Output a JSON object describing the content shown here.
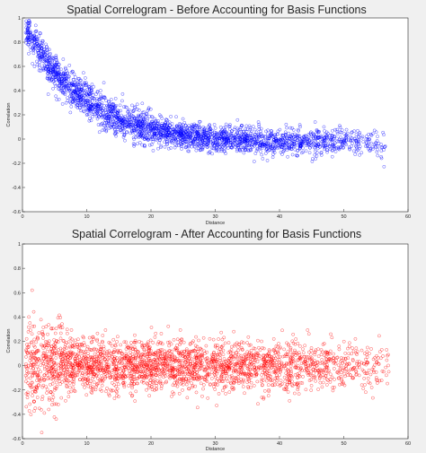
{
  "chart_data": [
    {
      "type": "scatter",
      "title": "Spatial Correlogram - Before Accounting for Basis Functions",
      "xlabel": "Distance",
      "ylabel": "Correlation",
      "xlim": [
        0,
        60
      ],
      "ylim": [
        -0.6,
        1
      ],
      "xticks": [
        "0",
        "10",
        "20",
        "30",
        "40",
        "50",
        "60"
      ],
      "yticks": [
        "-0.6",
        "-0.4",
        "-0.2",
        "0",
        "0.2",
        "0.4",
        "0.6",
        "0.8",
        "1"
      ],
      "marker": "open-circle",
      "color": "#0000ff",
      "grid": false,
      "trend": "exponential decay from about 0.85 at distance 0 toward about -0.02 beyond distance 40",
      "samples": [
        {
          "x": 1,
          "y": 0.86
        },
        {
          "x": 2,
          "y": 0.78
        },
        {
          "x": 3,
          "y": 0.7
        },
        {
          "x": 5,
          "y": 0.56
        },
        {
          "x": 7,
          "y": 0.44
        },
        {
          "x": 10,
          "y": 0.32
        },
        {
          "x": 13,
          "y": 0.22
        },
        {
          "x": 16,
          "y": 0.14
        },
        {
          "x": 20,
          "y": 0.08
        },
        {
          "x": 25,
          "y": 0.03
        },
        {
          "x": 30,
          "y": 0.0
        },
        {
          "x": 35,
          "y": -0.01
        },
        {
          "x": 40,
          "y": -0.02
        },
        {
          "x": 45,
          "y": -0.02
        },
        {
          "x": 50,
          "y": -0.01
        },
        {
          "x": 55,
          "y": -0.03
        },
        {
          "x": 56,
          "y": -0.07
        }
      ],
      "point_count": 2600,
      "x_extent": [
        0.5,
        56.5
      ],
      "scatter_halfwidth": 0.09
    },
    {
      "type": "scatter",
      "title": "Spatial Correlogram - After Accounting for Basis Functions",
      "xlabel": "Distance",
      "ylabel": "Correlation",
      "xlim": [
        0,
        60
      ],
      "ylim": [
        -0.6,
        1
      ],
      "xticks": [
        "0",
        "10",
        "20",
        "30",
        "40",
        "50",
        "60"
      ],
      "yticks": [
        "-0.6",
        "-0.4",
        "-0.2",
        "0",
        "0.2",
        "0.4",
        "0.6",
        "0.8",
        "1"
      ],
      "marker": "open-circle",
      "color": "#ff0000",
      "grid": false,
      "trend": "scattered around 0 with larger spread (about -0.5 to 0.6) at short distances",
      "samples": [
        {
          "x": 1,
          "y": 0.4
        },
        {
          "x": 1.5,
          "y": 0.62
        },
        {
          "x": 2,
          "y": -0.35
        },
        {
          "x": 3,
          "y": -0.55
        },
        {
          "x": 5,
          "y": -0.2
        },
        {
          "x": 10,
          "y": 0.0
        },
        {
          "x": 20,
          "y": 0.02
        },
        {
          "x": 28,
          "y": 0.08
        },
        {
          "x": 40,
          "y": 0.0
        },
        {
          "x": 50,
          "y": -0.02
        },
        {
          "x": 57,
          "y": -0.05
        }
      ],
      "point_count": 2600,
      "x_extent": [
        0.5,
        57
      ],
      "scatter_halfwidth": 0.1
    }
  ]
}
